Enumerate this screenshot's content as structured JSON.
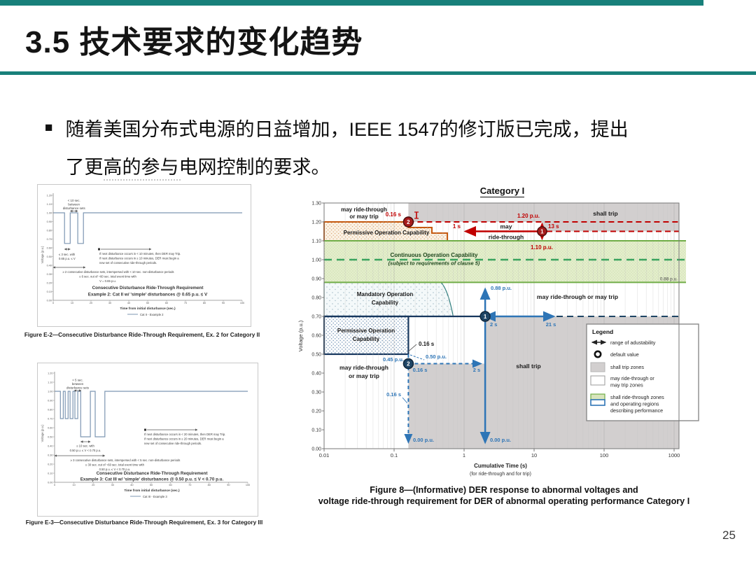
{
  "slide": {
    "title": "3.5 技术要求的变化趋势",
    "bullet": "■",
    "bullet_line1": "随着美国分布式电源的日益增加，IEEE 1547的修订版已完成，提出",
    "bullet_line2": "了更高的参与电网控制的要求。",
    "page_number": "25"
  },
  "colors": {
    "accent_teal": "#18807a",
    "red": "#c00000",
    "blue": "#2e75b6",
    "navy": "#1f4565",
    "green": "#70ad47",
    "green_fill": "#e4eecd",
    "orange": "#c55a11",
    "gray_zone": "#d2cfcf"
  },
  "figure_e2": {
    "caption": "Figure E-2—Consecutive Disturbance Ride-Through Requirement, Ex. 2 for Category II",
    "chart": {
      "type": "line",
      "title_line1": "Consecutive Disturbance Ride-Through Requirement",
      "title_line2": "Example 2: Cat II w/ 'simple' disturbances @ 0.65 p.u. ≤ V",
      "xlabel": "Time from initial disturbance (sec.)",
      "ylabel": "Voltage (p.u.)",
      "legend": "Cat II - Example 2",
      "x_ticks": [
        0,
        10,
        20,
        30,
        40,
        50,
        60,
        70,
        80,
        90,
        100
      ],
      "y_ticks": [
        "1.20",
        "1.10",
        "1.00",
        "0.90",
        "0.80",
        "0.70",
        "0.60",
        "0.50",
        "0.40",
        "0.30",
        "0.20",
        "0.10",
        "0.00"
      ],
      "waveform": [
        [
          0,
          1
        ],
        [
          6,
          1
        ],
        [
          6,
          0.65
        ],
        [
          9,
          0.65
        ],
        [
          9,
          1
        ],
        [
          13,
          1
        ],
        [
          13,
          0.65
        ],
        [
          16,
          0.65
        ],
        [
          16,
          1
        ],
        [
          100,
          1
        ]
      ],
      "ann_gap1": "< 10 sec.",
      "ann_gap2": "between",
      "ann_gap3": "disturbance sets",
      "ann_dip1": "≤ 3 sec. with",
      "ann_dip2": "0.65 p.u. ≤ V",
      "ann_next1": "If next disturbance occurs in < 10 minutes, then DER may Trip.",
      "ann_next2": "If next disturbance occurs in ≥ 10 minutes, DER must begin a",
      "ann_next3": "new set of consecutive ride-through periods.",
      "ann_set1": "≥ 2 consecutive disturbance sets, interspersed with < 10 sec. non-disturbance periods",
      "ann_set2": "≤ 6 sec. out of ~60 sec. total event time with",
      "ann_set3": "V = 0.65 p.u."
    }
  },
  "figure_e3": {
    "caption": "Figure E-3—Consecutive Disturbance Ride-Through Requirement, Ex. 3 for Category III",
    "chart": {
      "type": "line",
      "title_line1": "Consecutive Disturbance Ride-Through Requirement",
      "title_line2": "Example 3: Cat III w/ 'simple' disturbances @ 0.50 p.u. ≤ V < 0.70 p.u.",
      "xlabel": "Time from initial disturbance (sec.)",
      "ylabel": "Voltage (p.u.)",
      "legend": "Cat III - Example 3",
      "x_ticks": [
        0,
        10,
        20,
        30,
        40,
        50,
        60,
        70,
        80,
        90,
        100
      ],
      "y_ticks": [
        "1.20",
        "1.10",
        "1.00",
        "0.90",
        "0.80",
        "0.70",
        "0.60",
        "0.50",
        "0.40",
        "0.30",
        "0.20",
        "0.10",
        "0.00"
      ],
      "waveform": [
        [
          0,
          1
        ],
        [
          3,
          1
        ],
        [
          3,
          0.7
        ],
        [
          4.5,
          0.7
        ],
        [
          4.5,
          1
        ],
        [
          5.5,
          1
        ],
        [
          5.5,
          0.7
        ],
        [
          7,
          0.7
        ],
        [
          7,
          1
        ],
        [
          8,
          1
        ],
        [
          8,
          0.7
        ],
        [
          9.5,
          0.7
        ],
        [
          9.5,
          1
        ],
        [
          10.5,
          1
        ],
        [
          10.5,
          0.7
        ],
        [
          12,
          0.7
        ],
        [
          12,
          1
        ],
        [
          13.5,
          1
        ],
        [
          13.5,
          0.5
        ],
        [
          18.5,
          0.5
        ],
        [
          18.5,
          1
        ],
        [
          21,
          1
        ],
        [
          21,
          0.5
        ],
        [
          26,
          0.5
        ],
        [
          26,
          1
        ],
        [
          100,
          1
        ]
      ],
      "ann_gap1": "< 5 sec.",
      "ann_gap2": "between",
      "ann_gap3": "disturbance sets",
      "ann_dip1": "≥ 10 sec. with",
      "ann_dip2": "0.50 p.u. ≤ V < 0.70 p.u.",
      "ann_next1": "If next disturbance occurs in < 20 minutes, then DER may Trip.",
      "ann_next2": "If next disturbance occurs in ≥ 20 minutes, DER must begin a",
      "ann_next3": "new set of consecutive ride-through periods.",
      "ann_set1": "≥ 3 consecutive disturbance sets, interspersed with < 5 sec. non-disturbance periods",
      "ann_set2": "≤ 30 sec. out of ~60 sec. total event time with",
      "ann_set3": "0.50 p.u. ≤ V < 0.70 p.u."
    }
  },
  "main_figure": {
    "header": "Category I",
    "caption_line1": "Figure 8—(Informative) DER response to abnormal voltages and",
    "caption_line2": "voltage ride-through requirement for DER of abnormal operating performance Category I",
    "chart_data": {
      "type": "area",
      "title": "Category I",
      "xlabel": "Cumulative Time (s)",
      "xlabel_note": "(for ride-through and for trip)",
      "ylabel": "Voltage (p.u.)",
      "x_scale": "log",
      "x_ticks": [
        "0.01",
        "0.1",
        "1",
        "10",
        "100",
        "1000"
      ],
      "y_ticks": [
        "1.30",
        "1.20",
        "1.10",
        "1.00",
        "0.90",
        "0.80",
        "0.70",
        "0.60",
        "0.50",
        "0.40",
        "0.30",
        "0.20",
        "0.10",
        "0.00"
      ],
      "zones": [
        {
          "name": "shall trip (overvoltage)",
          "voltage_pu": "above 1.20",
          "time_s": "beyond 0.16"
        },
        {
          "name": "Permissive Operation Capability (overvoltage)",
          "voltage_pu": "1.10 to 1.20",
          "time_s": "0.01 to about 0.6"
        },
        {
          "name": "Continuous Operation Capability",
          "voltage_pu": "0.88 to 1.10",
          "note": "(subject to requirements of clause 5)"
        },
        {
          "name": "Mandatory Operation Capability",
          "voltage_pu": "0.70 to 0.88",
          "time_s": "0.01 to about 0.7"
        },
        {
          "name": "Permissive Operation Capability (undervoltage)",
          "voltage_pu": "0.50 to 0.70",
          "time_s": "0.01 to 0.16"
        },
        {
          "name": "shall trip (undervoltage)",
          "voltage_pu": "below 0.45 after 0.16 s and below 0.70 after 2 s"
        }
      ],
      "markers": [
        {
          "num": "2",
          "color": "red",
          "time_s": 0.16,
          "voltage_pu": 1.2
        },
        {
          "num": "1",
          "color": "red",
          "time_s": 13,
          "voltage_pu": 1.15
        },
        {
          "num": "2",
          "color": "blue",
          "time_s": 0.16,
          "voltage_pu": 0.45
        },
        {
          "num": "1",
          "color": "blue",
          "time_s": 2,
          "voltage_pu": 0.7
        }
      ],
      "labels": {
        "mrt_top1": "may ride-through",
        "mrt_top2": "or may trip",
        "t016_red": "0.16 s",
        "shalltrip_top": "shall trip",
        "perm_top": "Permissive Operation Capability",
        "t1s": "1 s",
        "may": "may",
        "ridethrough": "ride-through",
        "v120": "1.20 p.u.",
        "t13s": "13 s",
        "v110": "1.10 p.u.",
        "cont1": "Continuous Operation Capability",
        "cont2": "(subject to requirements of clause 5)",
        "v088_right": "0.88 p.u.",
        "mand1": "Mandatory Operation",
        "mand2": "Capability",
        "mrt_mid": "may ride-through or may trip",
        "v088_blue": "0.88 p.u.",
        "perm_low1": "Permissive Operation",
        "perm_low2": "Capability",
        "t016_black": "0.16 s",
        "v045": "0.45 p.u.",
        "v050": "0.50 p.u.",
        "t016_blue_a": "0.16 s",
        "t2s_a": "2 s",
        "t016_blue_b": "0.16 s",
        "t2s_b": "2 s",
        "t21s": "21 s",
        "shalltrip_bot": "shall trip",
        "mrt_bot1": "may ride-through",
        "mrt_bot2": "or may trip",
        "v000_a": "0.00 p.u.",
        "v000_b": "0.00 p.u.",
        "m_red1": "1",
        "m_red2": "2",
        "m_blue1": "1",
        "m_blue2": "2"
      },
      "legend": {
        "title": "Legend",
        "item_range": "range of adustability",
        "item_default": "default value",
        "item_shalltrip": "shall trip zones",
        "item_mrt_a": "may ride-through or",
        "item_mrt_b": "may trip zones",
        "item_srt_a": "shall ride-through zones",
        "item_srt_b": "and operating regions",
        "item_srt_c": "describing performance"
      }
    }
  }
}
